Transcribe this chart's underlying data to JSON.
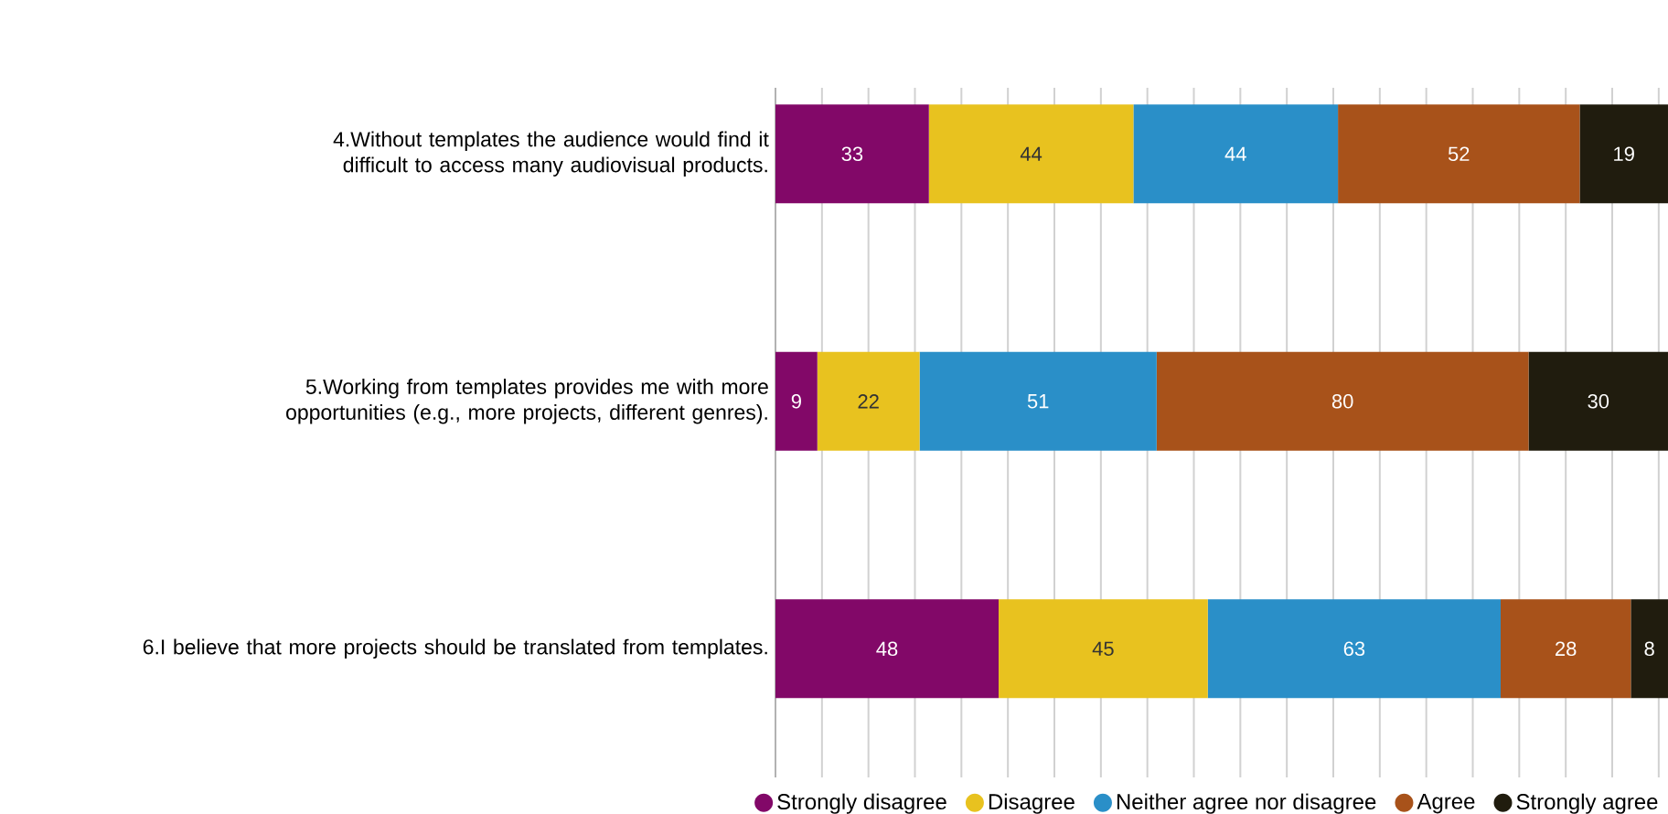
{
  "chart_data": {
    "type": "bar",
    "orientation": "horizontal",
    "stacked": true,
    "categories": [
      "4.Without templates the audience would find it difficult to access many audiovisual products.",
      "5.Working from templates provides me with more opportunities (e.g., more projects, different genres).",
      "6.I believe that more projects should be translated from templates."
    ],
    "series": [
      {
        "name": "Strongly disagree",
        "color": "#820868",
        "values": [
          33,
          9,
          48
        ]
      },
      {
        "name": "Disagree",
        "color": "#e8c21f",
        "values": [
          44,
          22,
          45
        ]
      },
      {
        "name": "Neither agree nor disagree",
        "color": "#2a8fc8",
        "values": [
          44,
          51,
          63
        ]
      },
      {
        "name": "Agree",
        "color": "#a8521a",
        "values": [
          52,
          80,
          28
        ]
      },
      {
        "name": "Strongly agree",
        "color": "#201c0e",
        "values": [
          19,
          30,
          8
        ]
      }
    ],
    "tick_labels": "y",
    "grid": "x",
    "legend": "bottom",
    "data_labels": true
  }
}
